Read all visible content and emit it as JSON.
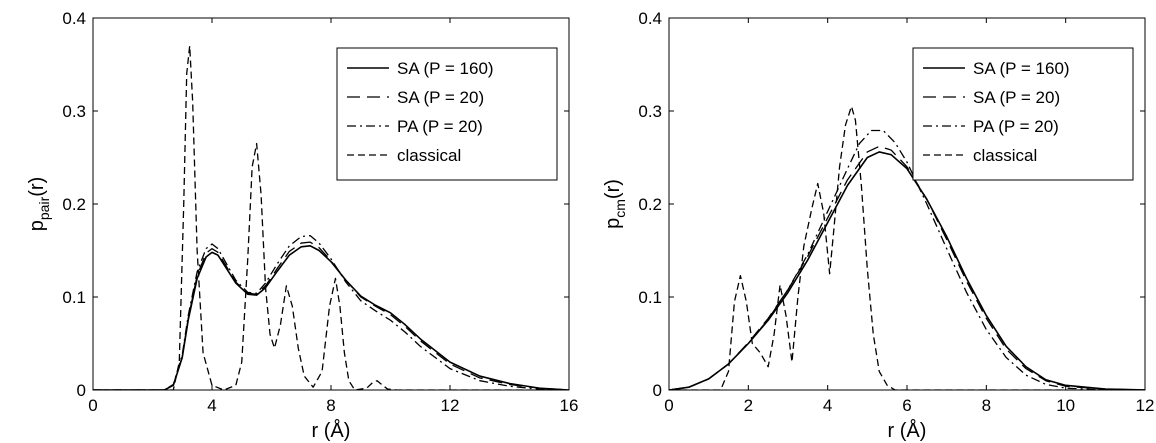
{
  "chart_data": [
    {
      "type": "line",
      "xlabel": "r (Å)",
      "ylabel": "p",
      "ylabel_sub": "pair",
      "ylabel_suffix": "(r)",
      "xlim": [
        0,
        16
      ],
      "ylim": [
        0,
        0.4
      ],
      "xticks": [
        0,
        4,
        8,
        12,
        16
      ],
      "yticks": [
        0,
        0.1,
        0.2,
        0.3,
        0.4
      ],
      "xtick_labels": [
        "0",
        "4",
        "8",
        "12",
        "16"
      ],
      "ytick_labels": [
        "0",
        "0.1",
        "0.2",
        "0.3",
        "0.4"
      ],
      "grid": false,
      "legend_position": "top-right",
      "series": [
        {
          "name": "SA (P = 160)",
          "style": "solid",
          "x": [
            0,
            2.4,
            2.7,
            3.0,
            3.2,
            3.5,
            3.8,
            4.0,
            4.2,
            4.5,
            4.8,
            5.2,
            5.5,
            5.8,
            6.2,
            6.6,
            7.0,
            7.3,
            7.6,
            8.0,
            8.5,
            9.0,
            9.5,
            10.0,
            10.5,
            11.0,
            12.0,
            13.0,
            14.0,
            15.0,
            16.0
          ],
          "y": [
            0,
            0,
            0.005,
            0.035,
            0.075,
            0.12,
            0.143,
            0.148,
            0.145,
            0.13,
            0.115,
            0.103,
            0.102,
            0.11,
            0.128,
            0.145,
            0.154,
            0.155,
            0.15,
            0.138,
            0.118,
            0.101,
            0.091,
            0.083,
            0.07,
            0.055,
            0.03,
            0.015,
            0.007,
            0.002,
            0.0
          ]
        },
        {
          "name": "SA (P = 20)",
          "style": "dashed",
          "x": [
            0,
            2.4,
            2.7,
            3.0,
            3.2,
            3.5,
            3.8,
            4.0,
            4.2,
            4.5,
            4.8,
            5.2,
            5.5,
            5.8,
            6.2,
            6.6,
            7.0,
            7.3,
            7.6,
            8.0,
            8.5,
            9.0,
            9.5,
            10.0,
            10.5,
            11.0,
            12.0,
            13.0,
            14.0,
            15.0,
            16.0
          ],
          "y": [
            0,
            0,
            0.005,
            0.036,
            0.077,
            0.123,
            0.147,
            0.152,
            0.148,
            0.132,
            0.116,
            0.104,
            0.103,
            0.112,
            0.131,
            0.149,
            0.158,
            0.159,
            0.153,
            0.139,
            0.118,
            0.1,
            0.09,
            0.081,
            0.068,
            0.053,
            0.028,
            0.013,
            0.006,
            0.002,
            0.0
          ]
        },
        {
          "name": "PA (P = 20)",
          "style": "dashdot",
          "x": [
            0,
            2.4,
            2.7,
            3.0,
            3.2,
            3.5,
            3.8,
            4.0,
            4.2,
            4.5,
            4.8,
            5.2,
            5.5,
            5.8,
            6.2,
            6.6,
            7.0,
            7.3,
            7.6,
            8.0,
            8.5,
            9.0,
            9.5,
            10.0,
            10.5,
            11.0,
            12.0,
            13.0,
            14.0,
            15.0,
            16.0
          ],
          "y": [
            0,
            0,
            0.006,
            0.038,
            0.08,
            0.127,
            0.152,
            0.157,
            0.152,
            0.135,
            0.118,
            0.105,
            0.104,
            0.115,
            0.136,
            0.155,
            0.165,
            0.166,
            0.158,
            0.141,
            0.116,
            0.096,
            0.085,
            0.075,
            0.062,
            0.047,
            0.023,
            0.01,
            0.004,
            0.001,
            0.0
          ]
        },
        {
          "name": "classical",
          "style": "dashed-short",
          "x": [
            0,
            2.7,
            2.9,
            3.05,
            3.15,
            3.25,
            3.35,
            3.5,
            3.7,
            4.0,
            4.4,
            4.8,
            5.0,
            5.2,
            5.35,
            5.5,
            5.65,
            5.8,
            5.95,
            6.1,
            6.3,
            6.5,
            6.7,
            6.9,
            7.1,
            7.4,
            7.7,
            7.95,
            8.15,
            8.3,
            8.45,
            8.6,
            8.8,
            9.2,
            9.4,
            9.55,
            9.7,
            9.9,
            10.2,
            16.0
          ],
          "y": [
            0,
            0,
            0.03,
            0.2,
            0.34,
            0.37,
            0.31,
            0.15,
            0.04,
            0.005,
            0.0,
            0.005,
            0.03,
            0.14,
            0.24,
            0.265,
            0.21,
            0.11,
            0.06,
            0.045,
            0.07,
            0.112,
            0.09,
            0.045,
            0.015,
            0.003,
            0.02,
            0.09,
            0.12,
            0.09,
            0.04,
            0.01,
            0.0,
            0.002,
            0.008,
            0.01,
            0.006,
            0.001,
            0.0,
            0.0
          ]
        }
      ]
    },
    {
      "type": "line",
      "xlabel": "r (Å)",
      "ylabel": "p",
      "ylabel_sub": "cm",
      "ylabel_suffix": "(r)",
      "xlim": [
        0,
        12
      ],
      "ylim": [
        0,
        0.4
      ],
      "xticks": [
        0,
        2,
        4,
        6,
        8,
        10,
        12
      ],
      "yticks": [
        0,
        0.1,
        0.2,
        0.3,
        0.4
      ],
      "xtick_labels": [
        "0",
        "2",
        "4",
        "6",
        "8",
        "10",
        "12"
      ],
      "ytick_labels": [
        "0",
        "0.1",
        "0.2",
        "0.3",
        "0.4"
      ],
      "grid": false,
      "legend_position": "top-right",
      "series": [
        {
          "name": "SA (P = 160)",
          "style": "solid",
          "x": [
            0,
            0.5,
            1.0,
            1.5,
            2.0,
            2.5,
            3.0,
            3.5,
            4.0,
            4.5,
            5.0,
            5.3,
            5.6,
            6.0,
            6.5,
            7.0,
            7.5,
            8.0,
            8.5,
            9.0,
            9.5,
            10.0,
            11.0,
            12.0
          ],
          "y": [
            0,
            0.003,
            0.012,
            0.028,
            0.05,
            0.075,
            0.105,
            0.14,
            0.18,
            0.22,
            0.25,
            0.256,
            0.253,
            0.238,
            0.205,
            0.165,
            0.12,
            0.08,
            0.047,
            0.025,
            0.011,
            0.005,
            0.001,
            0.0
          ]
        },
        {
          "name": "SA (P = 20)",
          "style": "dashed",
          "x": [
            0,
            0.5,
            1.0,
            1.5,
            2.0,
            2.5,
            3.0,
            3.5,
            4.0,
            4.5,
            5.0,
            5.3,
            5.6,
            6.0,
            6.5,
            7.0,
            7.5,
            8.0,
            8.5,
            9.0,
            9.5,
            10.0,
            11.0,
            12.0
          ],
          "y": [
            0,
            0.003,
            0.012,
            0.028,
            0.051,
            0.077,
            0.108,
            0.144,
            0.185,
            0.226,
            0.256,
            0.262,
            0.258,
            0.24,
            0.205,
            0.162,
            0.117,
            0.077,
            0.044,
            0.023,
            0.01,
            0.004,
            0.001,
            0.0
          ]
        },
        {
          "name": "PA (P = 20)",
          "style": "dashdot",
          "x": [
            0,
            0.5,
            1.0,
            1.5,
            2.0,
            2.5,
            3.0,
            3.5,
            4.0,
            4.5,
            4.8,
            5.1,
            5.4,
            5.7,
            6.0,
            6.5,
            7.0,
            7.5,
            8.0,
            8.5,
            9.0,
            9.5,
            10.0,
            11.0,
            12.0
          ],
          "y": [
            0,
            0.003,
            0.012,
            0.028,
            0.05,
            0.076,
            0.108,
            0.146,
            0.192,
            0.238,
            0.265,
            0.279,
            0.279,
            0.266,
            0.245,
            0.2,
            0.152,
            0.105,
            0.065,
            0.035,
            0.016,
            0.006,
            0.002,
            0.0,
            0.0
          ]
        },
        {
          "name": "classical",
          "style": "dashed-short",
          "x": [
            0,
            1.3,
            1.5,
            1.65,
            1.8,
            1.95,
            2.1,
            2.3,
            2.5,
            2.65,
            2.8,
            2.95,
            3.1,
            3.25,
            3.4,
            3.6,
            3.75,
            3.9,
            4.05,
            4.15,
            4.3,
            4.45,
            4.6,
            4.7,
            4.85,
            5.0,
            5.15,
            5.3,
            5.5,
            5.7,
            6.0,
            12.0
          ],
          "y": [
            0,
            0.0,
            0.02,
            0.095,
            0.123,
            0.095,
            0.05,
            0.04,
            0.025,
            0.06,
            0.113,
            0.08,
            0.03,
            0.1,
            0.155,
            0.195,
            0.222,
            0.19,
            0.125,
            0.17,
            0.24,
            0.285,
            0.305,
            0.29,
            0.22,
            0.13,
            0.06,
            0.02,
            0.005,
            0.0,
            0.0,
            0.0
          ]
        }
      ]
    }
  ]
}
